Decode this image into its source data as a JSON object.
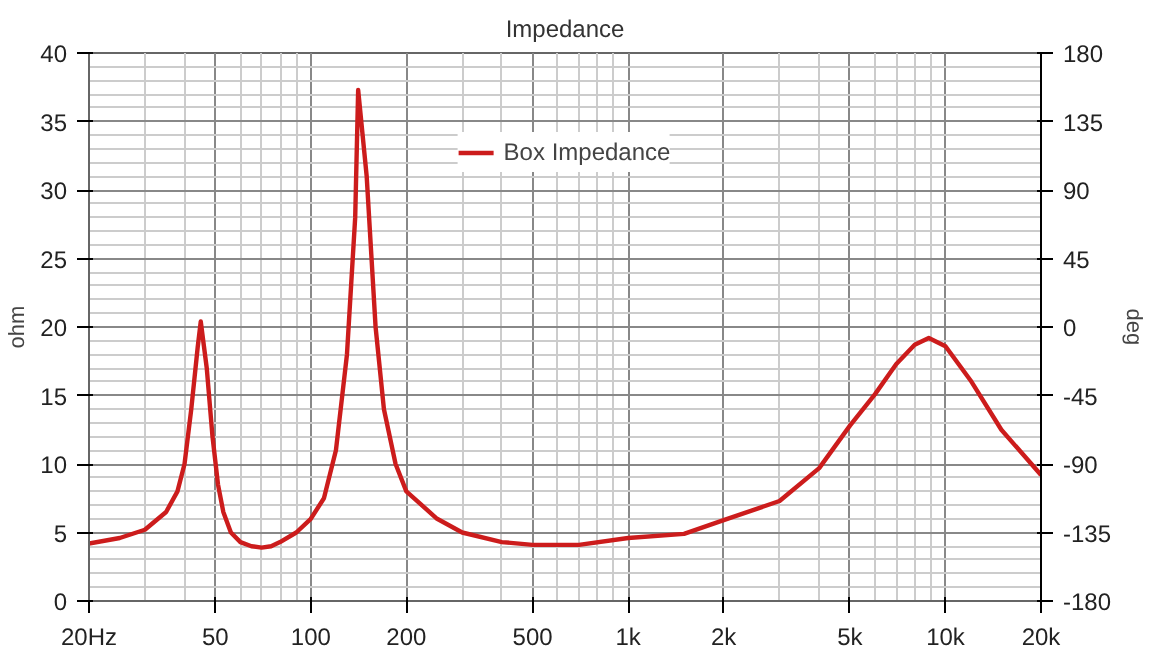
{
  "chart_data": {
    "type": "line",
    "title": "Impedance",
    "ylabel": "ohm",
    "y2label": "deg",
    "x": [
      20,
      25,
      30,
      35,
      38,
      40,
      42,
      44,
      45,
      47,
      49,
      51,
      53,
      56,
      60,
      65,
      70,
      75,
      80,
      90,
      100,
      110,
      120,
      130,
      138,
      141,
      150,
      160,
      170,
      185,
      200,
      250,
      300,
      400,
      500,
      700,
      1000,
      1500,
      2000,
      3000,
      4000,
      5000,
      6000,
      7000,
      8000,
      8860,
      10000,
      12000,
      15000,
      20000
    ],
    "series": [
      {
        "name": "Box Impedance",
        "color": "#cc1c1c",
        "values": [
          4.2,
          4.6,
          5.2,
          6.5,
          8,
          10,
          14,
          18.5,
          20.4,
          17,
          12,
          8.5,
          6.5,
          5,
          4.3,
          4.0,
          3.9,
          4.0,
          4.3,
          5.0,
          6.0,
          7.5,
          11,
          18,
          28,
          37.3,
          31,
          20,
          14,
          10,
          8,
          6,
          5,
          4.3,
          4.1,
          4.1,
          4.6,
          4.9,
          5.9,
          7.3,
          9.7,
          12.8,
          15.1,
          17.3,
          18.7,
          19.2,
          18.6,
          16.1,
          12.5,
          9.2
        ]
      }
    ],
    "log": "x",
    "xlim": [
      20,
      20000
    ],
    "xticks": [
      {
        "value": 20,
        "label": "20Hz"
      },
      50,
      100,
      200,
      500,
      {
        "value": 1000,
        "label": "1k"
      },
      {
        "value": 2000,
        "label": "2k"
      },
      {
        "value": 5000,
        "label": "5k"
      },
      {
        "value": 10000,
        "label": "10k"
      },
      {
        "value": 20000,
        "label": "20k"
      }
    ],
    "ylim": [
      0,
      40
    ],
    "yticks": [
      0,
      5,
      10,
      15,
      20,
      25,
      30,
      35,
      40
    ],
    "y2lim": [
      -180,
      180
    ],
    "y2ticks": [
      -180,
      -135,
      -90,
      -45,
      0,
      45,
      90,
      135,
      180
    ],
    "grid": true,
    "legend": "top",
    "line_style": "solid"
  }
}
